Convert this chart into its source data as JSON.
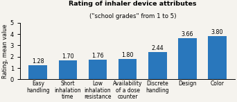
{
  "title_line1": "Rating of inhaler device attributes",
  "title_line2": "(\"school grades\" from 1 to 5)",
  "categories": [
    "Easy\nhandling",
    "Short\ninhalation\ntime",
    "Low\ninhalation\nresistance",
    "Availability\nof a dose\ncounter",
    "Discrete\nhandling",
    "Design",
    "Color"
  ],
  "values": [
    1.28,
    1.7,
    1.76,
    1.8,
    2.44,
    3.66,
    3.8
  ],
  "bar_color": "#2977BC",
  "ylabel": "Rating, mean value",
  "ylim": [
    0,
    5
  ],
  "yticks": [
    0,
    1,
    2,
    3,
    4,
    5
  ],
  "value_labels": [
    "1.28",
    "1.70",
    "1.76",
    "1.80",
    "2.44",
    "3.66",
    "3.80"
  ],
  "bar_width": 0.62,
  "background_color": "#f5f3ee",
  "title_fontsize": 6.8,
  "subtitle_fontsize": 6.2,
  "label_fontsize": 5.5,
  "value_fontsize": 5.8,
  "ylabel_fontsize": 5.8,
  "ytick_fontsize": 6.0
}
